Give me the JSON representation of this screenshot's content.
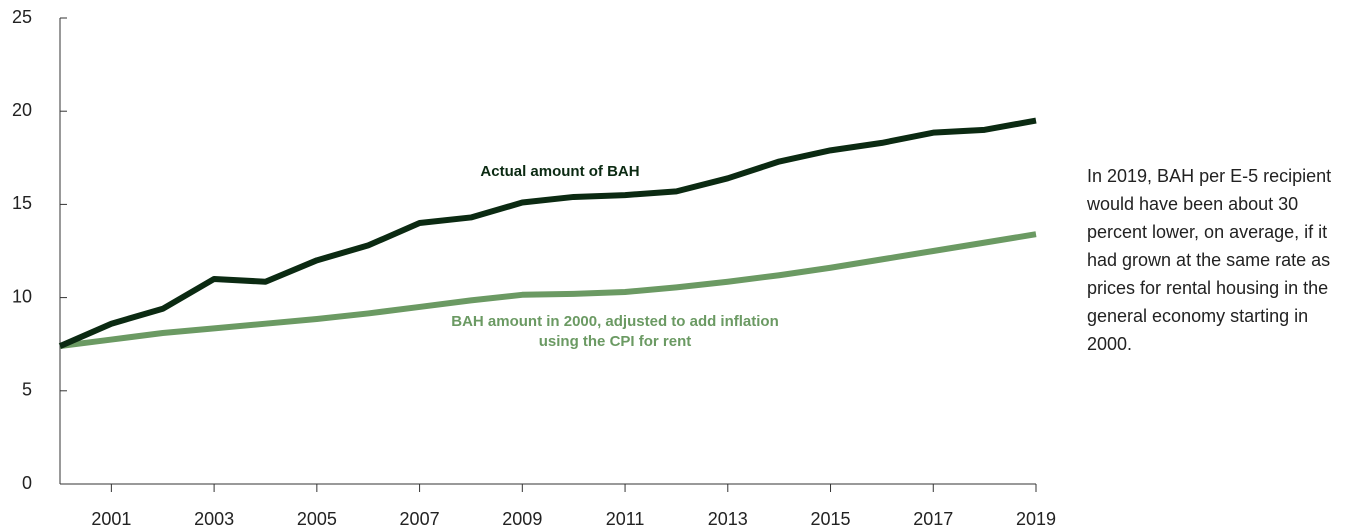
{
  "chart_data": {
    "type": "line",
    "x": [
      2000,
      2001,
      2002,
      2003,
      2004,
      2005,
      2006,
      2007,
      2008,
      2009,
      2010,
      2011,
      2012,
      2013,
      2014,
      2015,
      2016,
      2017,
      2018,
      2019
    ],
    "series": [
      {
        "name": "Actual amount of BAH",
        "color": "#0b2a12",
        "values": [
          7.4,
          8.6,
          9.4,
          11.0,
          10.85,
          12.0,
          12.8,
          14.0,
          14.3,
          15.1,
          15.4,
          15.5,
          15.7,
          16.4,
          17.3,
          17.9,
          18.3,
          18.85,
          19.0,
          19.5
        ]
      },
      {
        "name": "BAH amount in 2000, adjusted to add inflation using the CPI for rent",
        "color": "#6b9a63",
        "values": [
          7.4,
          7.75,
          8.1,
          8.35,
          8.6,
          8.85,
          9.15,
          9.5,
          9.85,
          10.15,
          10.2,
          10.3,
          10.55,
          10.85,
          11.2,
          11.6,
          12.05,
          12.5,
          12.95,
          13.4
        ]
      }
    ],
    "xlim": [
      2000,
      2019
    ],
    "xticks": [
      2001,
      2003,
      2005,
      2007,
      2009,
      2011,
      2013,
      2015,
      2017,
      2019
    ],
    "ylim": [
      0,
      25
    ],
    "yticks": [
      0,
      5,
      10,
      15,
      20,
      25
    ],
    "annotation": "In 2019, BAH per E-5 recipient would have been about 30 percent lower, on average, if it had grown at the same rate as prices for rental housing in the general economy starting in 2000."
  }
}
